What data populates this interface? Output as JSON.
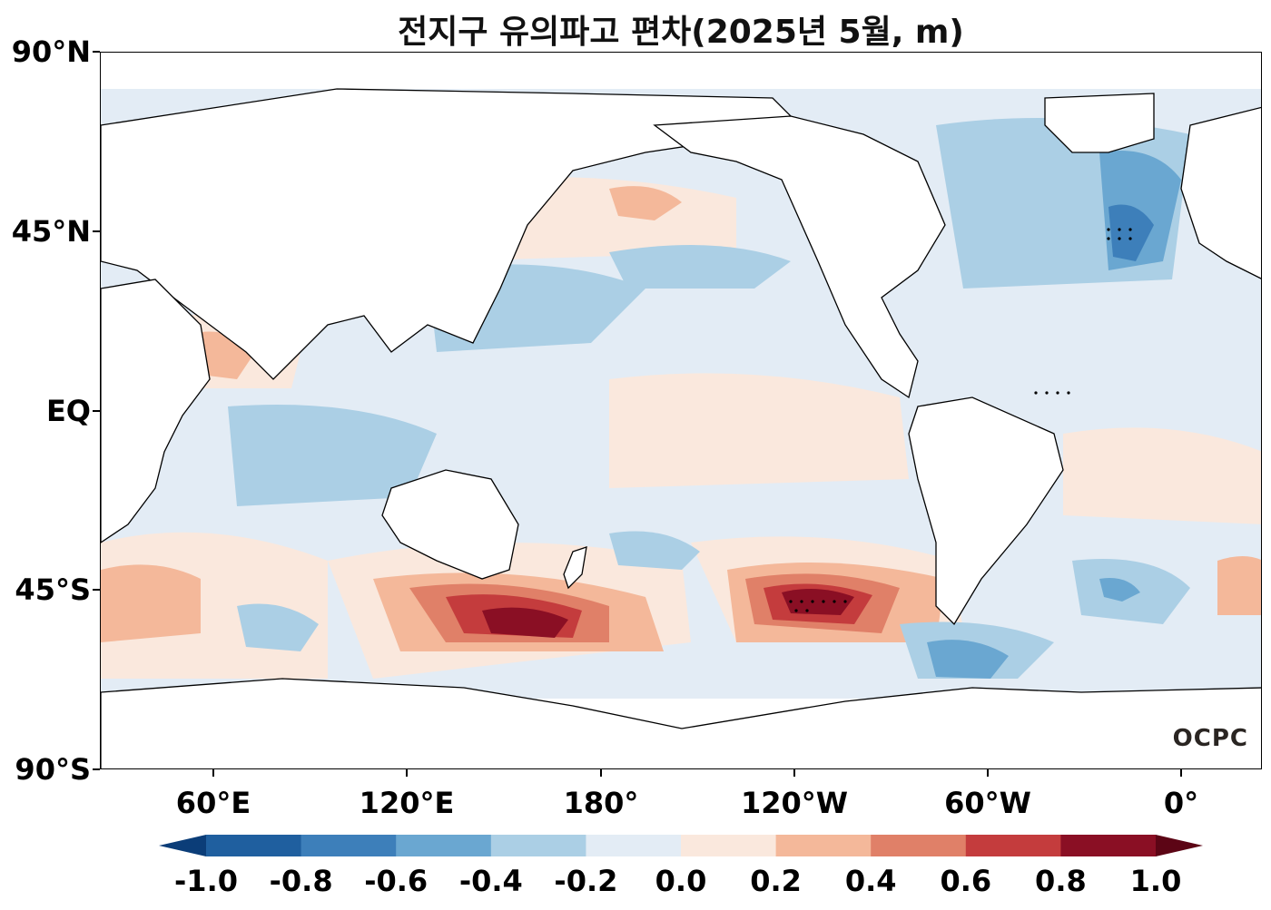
{
  "title": "전지구 유의파고 편차(2025년 5월, m)",
  "lat_labels": [
    "90°N",
    "45°N",
    "EQ",
    "45°S",
    "90°S"
  ],
  "lon_labels": [
    "60°E",
    "120°E",
    "180°",
    "120°W",
    "60°W",
    "0°"
  ],
  "colorbar": {
    "labels": [
      "-1.0",
      "-0.8",
      "-0.6",
      "-0.4",
      "-0.2",
      "0.0",
      "0.2",
      "0.4",
      "0.6",
      "0.8",
      "1.0"
    ],
    "colors": [
      "#0b3d78",
      "#1f5f9f",
      "#3d7fba",
      "#6aa7d1",
      "#abcfe5",
      "#e3ecf5",
      "#fae8dd",
      "#f4b89a",
      "#e08068",
      "#c43c3d",
      "#8a0f24",
      "#5c0515"
    ]
  },
  "logo_text": "OCPC",
  "land_color": "#ffffff",
  "coast_color": "#000000"
}
